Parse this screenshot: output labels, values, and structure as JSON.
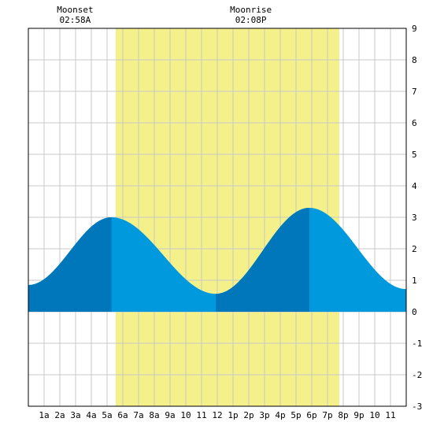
{
  "chart_data": {
    "type": "area",
    "title": "",
    "xlabel": "",
    "ylabel": "",
    "xlim": [
      0,
      24
    ],
    "ylim": [
      -3,
      9
    ],
    "grid": true,
    "y_ticks": [
      -3,
      -2,
      -1,
      0,
      1,
      2,
      3,
      4,
      5,
      6,
      7,
      8,
      9
    ],
    "x_ticks": [
      {
        "x": 1,
        "label": "1a"
      },
      {
        "x": 2,
        "label": "2a"
      },
      {
        "x": 3,
        "label": "3a"
      },
      {
        "x": 4,
        "label": "4a"
      },
      {
        "x": 5,
        "label": "5a"
      },
      {
        "x": 6,
        "label": "6a"
      },
      {
        "x": 7,
        "label": "7a"
      },
      {
        "x": 8,
        "label": "8a"
      },
      {
        "x": 9,
        "label": "9a"
      },
      {
        "x": 10,
        "label": "10"
      },
      {
        "x": 11,
        "label": "11"
      },
      {
        "x": 12,
        "label": "12"
      },
      {
        "x": 13,
        "label": "1p"
      },
      {
        "x": 14,
        "label": "2p"
      },
      {
        "x": 15,
        "label": "3p"
      },
      {
        "x": 16,
        "label": "4p"
      },
      {
        "x": 17,
        "label": "5p"
      },
      {
        "x": 18,
        "label": "6p"
      },
      {
        "x": 19,
        "label": "7p"
      },
      {
        "x": 20,
        "label": "8p"
      },
      {
        "x": 21,
        "label": "9p"
      },
      {
        "x": 22,
        "label": "10"
      },
      {
        "x": 23,
        "label": "11"
      }
    ],
    "daylight": {
      "start": 5.55,
      "end": 19.75,
      "color": "#f4f08a"
    },
    "moon_events": [
      {
        "name": "Moonset",
        "time": "02:58A",
        "x": 2.97
      },
      {
        "name": "Moonrise",
        "time": "02:08P",
        "x": 14.13
      }
    ],
    "tide": {
      "color_light": "#0099dd",
      "color_dark": "#0077bb",
      "extremes": [
        {
          "x": 0.0,
          "y": 0.85
        },
        {
          "x": 5.28,
          "y": 3.0
        },
        {
          "x": 11.9,
          "y": 0.57
        },
        {
          "x": 17.85,
          "y": 3.3
        },
        {
          "x": 24.0,
          "y": 0.72
        }
      ],
      "dark_bands": [
        [
          0,
          5.28
        ],
        [
          11.9,
          17.85
        ]
      ]
    },
    "colors": {
      "grid": "#c8c8c8",
      "axis": "#000000",
      "background": "#ffffff"
    }
  }
}
